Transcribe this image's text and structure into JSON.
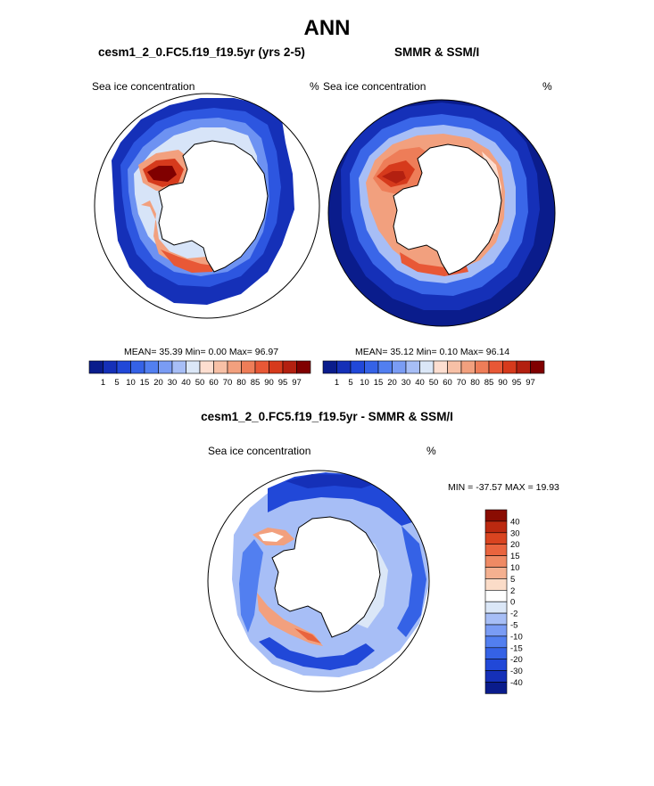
{
  "figure": {
    "title": "ANN",
    "diff_title": "cesm1_2_0.FC5.f19_f19.5yr - SMMR & SSM/I"
  },
  "panels": [
    {
      "title": "cesm1_2_0.FC5.f19_f19.5yr (yrs 2-5)",
      "left_label": "Sea ice concentration",
      "right_label": "%",
      "stats": "MEAN=  35.39  Min=   0.00  Max=  96.97",
      "mean": 35.39,
      "min": 0.0,
      "max": 96.97
    },
    {
      "title": "SMMR & SSM/I",
      "left_label": "Sea ice concentration",
      "right_label": "%",
      "stats": "MEAN=  35.12  Min=   0.10  Max=  96.14",
      "mean": 35.12,
      "min": 0.1,
      "max": 96.14
    }
  ],
  "diff_panel": {
    "left_label": "Sea ice concentration",
    "right_label": "%",
    "minmax": "MIN = -37.57 MAX =  19.93",
    "min": -37.57,
    "max": 19.93
  },
  "colors": {
    "conc": [
      "#0a1c8c",
      "#1530b8",
      "#2148d8",
      "#3562e6",
      "#527ff0",
      "#7a9cf4",
      "#a7bef6",
      "#dbe7f7",
      "#fdded0",
      "#f7c0a6",
      "#f2a07e",
      "#ee7d58",
      "#e85836",
      "#d63a1c",
      "#b32010",
      "#800000"
    ],
    "diff": [
      "#0a1c8c",
      "#1530b8",
      "#2148d8",
      "#3562e6",
      "#527ff0",
      "#7a9cf4",
      "#a7bef6",
      "#dbe7f7",
      "#ffffff",
      "#fbdcc8",
      "#f4b090",
      "#ef8a64",
      "#e9643e",
      "#d94420",
      "#bb2910",
      "#8a0c02"
    ]
  },
  "chart_data": [
    {
      "type": "colorbar",
      "name": "concentration",
      "unit": "%",
      "levels": [
        "1",
        "5",
        "10",
        "15",
        "20",
        "30",
        "40",
        "50",
        "60",
        "70",
        "80",
        "85",
        "90",
        "95",
        "97"
      ]
    },
    {
      "type": "colorbar",
      "name": "difference",
      "unit": "%",
      "levels": [
        "40",
        "30",
        "20",
        "15",
        "10",
        "5",
        "2",
        "0",
        "-2",
        "-5",
        "-10",
        "-15",
        "-20",
        "-30",
        "-40"
      ]
    }
  ]
}
